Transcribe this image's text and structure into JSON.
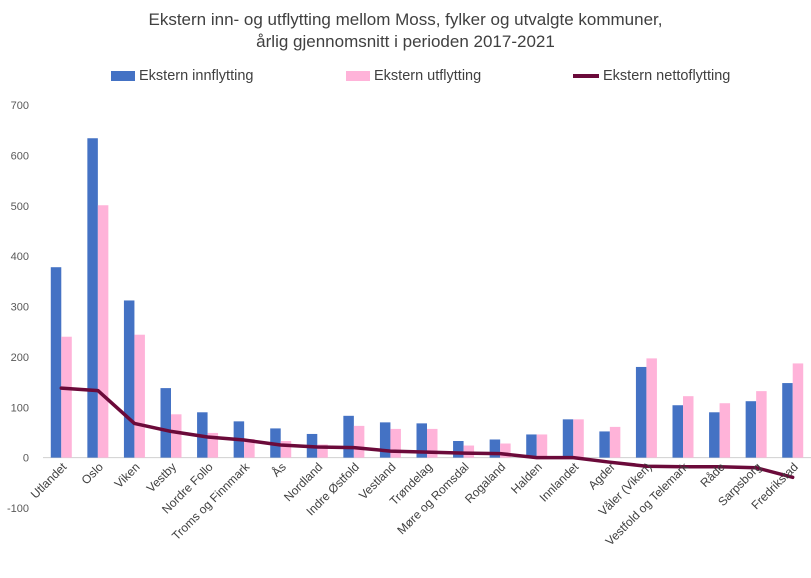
{
  "chart_data": {
    "type": "bar",
    "title": "Ekstern inn- og utflytting mellom Moss, fylker og utvalgte kommuner,",
    "subtitle": "årlig gjennomsnitt i perioden 2017-2021",
    "legend_position": "top",
    "grid": false,
    "ylim": [
      -100,
      700
    ],
    "yticks": [
      -100,
      0,
      100,
      200,
      300,
      400,
      500,
      600,
      700
    ],
    "categories": [
      "Utlandet",
      "Oslo",
      "Viken",
      "Vestby",
      "Nordre Follo",
      "Troms og Finnmark",
      "Ås",
      "Nordland",
      "Indre Østfold",
      "Vestland",
      "Trøndelag",
      "Møre og Romsdal",
      "Rogaland",
      "Halden",
      "Innlandet",
      "Agder",
      "Våler (Viken)",
      "Vestfold og Telemark",
      "Råde",
      "Sarpsborg",
      "Fredrikstad"
    ],
    "series": [
      {
        "name": "Ekstern innflytting",
        "type": "bar",
        "color": "#4472C4",
        "values": [
          378,
          634,
          312,
          138,
          90,
          72,
          58,
          47,
          83,
          70,
          68,
          33,
          36,
          46,
          76,
          52,
          180,
          104,
          90,
          112,
          148
        ]
      },
      {
        "name": "Ekstern utflytting",
        "type": "bar",
        "color": "#FFB3D9",
        "values": [
          240,
          501,
          244,
          86,
          49,
          37,
          33,
          26,
          63,
          57,
          57,
          24,
          28,
          46,
          76,
          61,
          197,
          122,
          108,
          132,
          187
        ]
      },
      {
        "name": "Ekstern nettoflytting",
        "type": "line",
        "color": "#6B0A3A",
        "values": [
          138,
          133,
          68,
          52,
          41,
          35,
          25,
          21,
          20,
          13,
          11,
          9,
          8,
          0,
          0,
          -9,
          -17,
          -18,
          -18,
          -20,
          -39
        ]
      }
    ]
  }
}
